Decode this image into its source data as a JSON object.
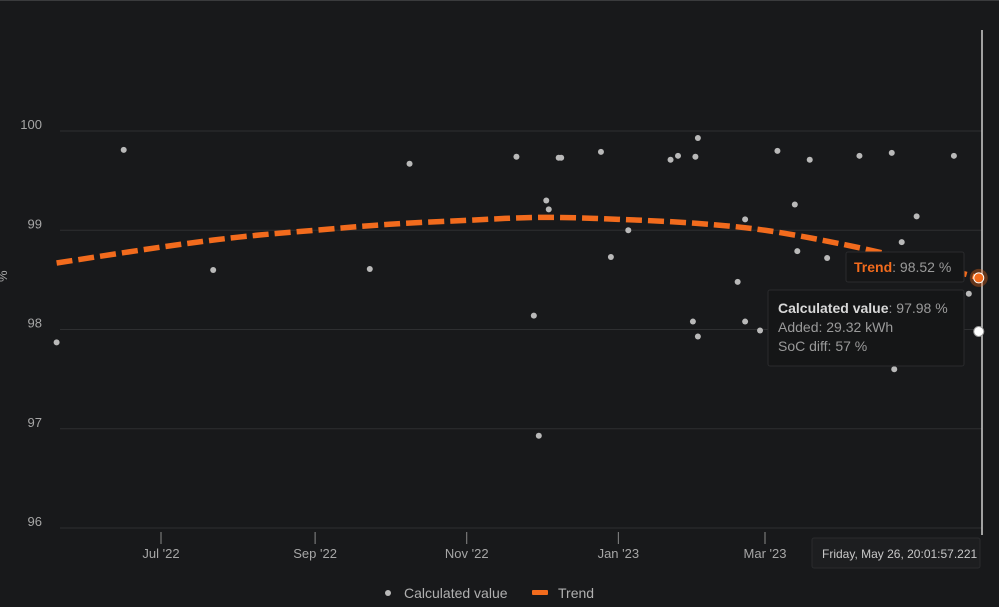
{
  "chart_data": {
    "type": "scatter",
    "title": "",
    "xlabel": "",
    "ylabel": "%",
    "ylim": [
      96,
      101
    ],
    "x_ticks": [
      {
        "date": "2022-07-01",
        "label": "Jul '22"
      },
      {
        "date": "2022-09-01",
        "label": "Sep '22"
      },
      {
        "date": "2022-11-01",
        "label": "Nov '22"
      },
      {
        "date": "2023-01-01",
        "label": "Jan '23"
      },
      {
        "date": "2023-03-01",
        "label": "Mar '23"
      }
    ],
    "y_ticks": [
      96,
      97,
      98,
      99,
      100
    ],
    "grid": true,
    "legend_placement": "bottom-center",
    "series": [
      {
        "name": "Calculated value",
        "kind": "scatter",
        "color": "#b9b9b9",
        "points": [
          [
            "2022-05-20",
            97.87
          ],
          [
            "2022-06-16",
            99.81
          ],
          [
            "2022-07-22",
            98.6
          ],
          [
            "2022-09-23",
            98.61
          ],
          [
            "2022-10-09",
            99.67
          ],
          [
            "2022-11-21",
            99.74
          ],
          [
            "2022-11-28",
            98.14
          ],
          [
            "2022-11-30",
            96.93
          ],
          [
            "2022-12-03",
            99.3
          ],
          [
            "2022-12-04",
            99.21
          ],
          [
            "2022-12-08",
            99.73
          ],
          [
            "2022-12-09",
            99.73
          ],
          [
            "2022-12-25",
            99.79
          ],
          [
            "2022-12-29",
            98.73
          ],
          [
            "2023-01-05",
            99.0
          ],
          [
            "2023-01-22",
            99.71
          ],
          [
            "2023-01-25",
            99.75
          ],
          [
            "2023-01-31",
            98.08
          ],
          [
            "2023-02-01",
            99.74
          ],
          [
            "2023-02-02",
            97.93
          ],
          [
            "2023-02-02",
            99.93
          ],
          [
            "2023-02-18",
            98.48
          ],
          [
            "2023-02-21",
            98.08
          ],
          [
            "2023-02-21",
            99.11
          ],
          [
            "2023-02-27",
            97.99
          ],
          [
            "2023-03-06",
            99.8
          ],
          [
            "2023-03-13",
            99.26
          ],
          [
            "2023-03-14",
            98.79
          ],
          [
            "2023-03-19",
            99.71
          ],
          [
            "2023-03-26",
            98.72
          ],
          [
            "2023-04-08",
            99.75
          ],
          [
            "2023-04-21",
            99.78
          ],
          [
            "2023-04-22",
            97.6
          ],
          [
            "2023-04-25",
            98.88
          ],
          [
            "2023-05-01",
            99.14
          ],
          [
            "2023-05-08",
            97.76
          ],
          [
            "2023-05-16",
            99.75
          ],
          [
            "2023-05-19",
            98.24
          ],
          [
            "2023-05-22",
            98.36
          ],
          [
            "2023-05-26",
            97.98
          ]
        ]
      },
      {
        "name": "Trend",
        "kind": "line",
        "style": "dashed",
        "color": "#f26b1d",
        "points": [
          [
            "2022-05-20",
            98.67
          ],
          [
            "2022-07-01",
            98.83
          ],
          [
            "2022-08-01",
            98.93
          ],
          [
            "2022-09-01",
            99.0
          ],
          [
            "2022-10-01",
            99.06
          ],
          [
            "2022-11-01",
            99.1
          ],
          [
            "2022-12-01",
            99.13
          ],
          [
            "2023-01-01",
            99.11
          ],
          [
            "2023-02-01",
            99.07
          ],
          [
            "2023-03-01",
            99.0
          ],
          [
            "2023-04-01",
            98.86
          ],
          [
            "2023-05-01",
            98.69
          ],
          [
            "2023-05-26",
            98.52
          ]
        ]
      }
    ]
  },
  "tooltip": {
    "date": "Friday, May 26, 20:01:57.221",
    "trend_name": "Trend",
    "trend_value": ": 98.52 %",
    "calc_name": "Calculated value",
    "calc_value": ": 97.98 %",
    "added": "Added: 29.32 kWh",
    "soc_diff": "SoC diff: 57 %"
  },
  "colors": {
    "background": "#18191b",
    "grid": "#2e2f31",
    "trend": "#f26b1d",
    "points": "#b9b9b9"
  }
}
